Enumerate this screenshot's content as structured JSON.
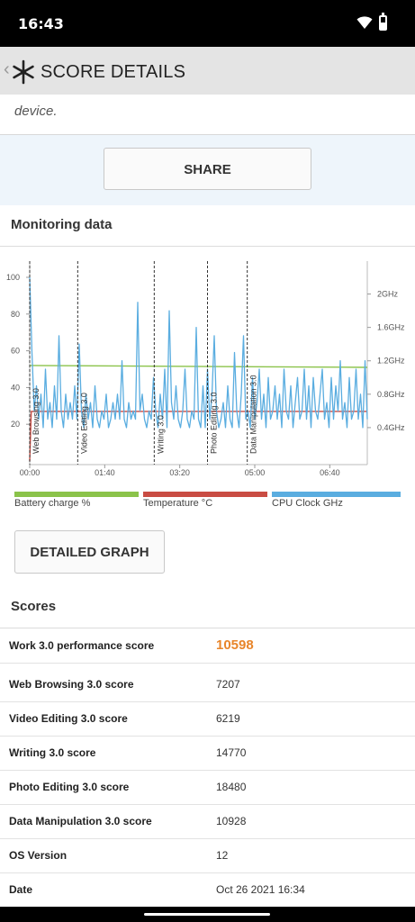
{
  "status": {
    "time": "16:43"
  },
  "appbar": {
    "title": "SCORE DETAILS"
  },
  "top_card": {
    "description_fragment": "device."
  },
  "share": {
    "label": "SHARE"
  },
  "monitoring": {
    "title": "Monitoring data",
    "left_ticks": [
      "100",
      "80",
      "60",
      "40",
      "20"
    ],
    "right_ticks": [
      "2GHz",
      "1.6GHz",
      "1.2GHz",
      "0.8GHz",
      "0.4GHz"
    ],
    "x_ticks": [
      "00:00",
      "01:40",
      "03:20",
      "05:00",
      "06:40"
    ],
    "test_markers": [
      "Web Browsing 3.0",
      "Video Editing 3.0",
      "Writing 3.0",
      "Photo Editing 3.0",
      "Data Manipulation 3.0"
    ],
    "legend": [
      {
        "label": "Battery charge %",
        "color": "#8bc34a"
      },
      {
        "label": "Temperature °C",
        "color": "#c94c43"
      },
      {
        "label": "CPU Clock GHz",
        "color": "#5aade0"
      }
    ]
  },
  "chart_data": {
    "type": "line",
    "x_label": "",
    "x_ticks": [
      "00:00",
      "01:40",
      "03:20",
      "05:00",
      "06:40"
    ],
    "x_range_seconds": [
      0,
      450
    ],
    "y_left_range": [
      0,
      100
    ],
    "y_right_range_ghz": [
      0,
      2.2
    ],
    "annotations": [
      {
        "label": "Web Browsing 3.0",
        "x_seconds": 0
      },
      {
        "label": "Video Editing 3.0",
        "x_seconds": 64
      },
      {
        "label": "Writing 3.0",
        "x_seconds": 166
      },
      {
        "label": "Photo Editing 3.0",
        "x_seconds": 237
      },
      {
        "label": "Data Manipulation 3.0",
        "x_seconds": 290
      }
    ],
    "series": [
      {
        "name": "Battery charge %",
        "axis": "left",
        "x": [
          0,
          450
        ],
        "values": [
          52,
          51
        ]
      },
      {
        "name": "Temperature °C",
        "axis": "left",
        "x": [
          0,
          2,
          450
        ],
        "values": [
          0,
          27,
          27
        ]
      },
      {
        "name": "CPU Clock GHz",
        "axis": "right",
        "x": [
          0,
          3,
          6,
          9,
          12,
          15,
          18,
          21,
          24,
          27,
          30,
          33,
          36,
          39,
          42,
          45,
          48,
          51,
          54,
          57,
          60,
          63,
          66,
          69,
          72,
          75,
          78,
          81,
          84,
          87,
          90,
          93,
          96,
          99,
          102,
          105,
          108,
          111,
          114,
          117,
          120,
          123,
          126,
          129,
          132,
          135,
          138,
          141,
          144,
          147,
          150,
          153,
          156,
          159,
          162,
          165,
          168,
          171,
          174,
          177,
          180,
          183,
          186,
          189,
          192,
          195,
          198,
          201,
          204,
          207,
          210,
          213,
          216,
          219,
          222,
          225,
          228,
          231,
          234,
          237,
          240,
          243,
          246,
          249,
          252,
          255,
          258,
          261,
          264,
          267,
          270,
          273,
          276,
          279,
          282,
          285,
          288,
          291,
          294,
          297,
          300,
          303,
          306,
          309,
          312,
          315,
          318,
          321,
          324,
          327,
          330,
          333,
          336,
          339,
          342,
          345,
          348,
          351,
          354,
          357,
          360,
          363,
          366,
          369,
          372,
          375,
          378,
          381,
          384,
          387,
          390,
          393,
          396,
          399,
          402,
          405,
          408,
          411,
          414,
          417,
          420,
          423,
          426,
          429,
          432,
          435,
          438,
          441,
          444,
          447,
          450
        ],
        "values": [
          2.2,
          1.3,
          0.6,
          0.9,
          0.5,
          0.8,
          0.4,
          1.1,
          0.5,
          0.7,
          0.4,
          0.9,
          0.5,
          1.5,
          0.6,
          0.4,
          0.8,
          0.5,
          0.7,
          0.5,
          0.9,
          0.5,
          1.4,
          0.6,
          0.4,
          0.8,
          0.5,
          0.7,
          0.4,
          0.9,
          0.5,
          0.4,
          0.6,
          0.5,
          0.8,
          0.4,
          0.5,
          0.7,
          0.5,
          0.8,
          0.5,
          1.2,
          0.5,
          0.4,
          0.7,
          0.5,
          0.6,
          0.5,
          1.9,
          0.6,
          0.8,
          0.5,
          0.4,
          0.6,
          0.5,
          1.0,
          0.6,
          0.4,
          0.8,
          0.5,
          1.1,
          0.4,
          1.8,
          0.7,
          0.5,
          0.9,
          0.5,
          0.4,
          0.6,
          1.1,
          0.5,
          0.4,
          0.6,
          0.5,
          1.6,
          0.5,
          0.4,
          0.9,
          0.4,
          1.1,
          0.5,
          0.8,
          1.5,
          0.6,
          0.4,
          0.5,
          0.7,
          0.4,
          0.9,
          0.5,
          0.4,
          1.3,
          0.6,
          0.4,
          0.8,
          1.5,
          0.5,
          0.6,
          0.4,
          1.0,
          0.5,
          0.7,
          1.1,
          0.5,
          0.8,
          0.4,
          1.0,
          0.5,
          0.6,
          0.9,
          0.5,
          0.8,
          0.4,
          1.1,
          0.6,
          0.5,
          0.9,
          0.4,
          0.7,
          1.0,
          0.5,
          0.6,
          1.1,
          0.5,
          0.9,
          0.4,
          1.0,
          0.6,
          0.5,
          0.8,
          1.1,
          0.5,
          0.7,
          0.4,
          1.0,
          0.5,
          0.9,
          0.6,
          1.2,
          0.5,
          0.7,
          0.4,
          1.0,
          0.5,
          0.6,
          1.1,
          0.5,
          0.8,
          0.4,
          1.2,
          0.5
        ]
      }
    ]
  },
  "detail_button": {
    "label": "DETAILED GRAPH"
  },
  "scores": {
    "title": "Scores",
    "rows": [
      {
        "label": "Work 3.0 performance score",
        "value": "10598"
      },
      {
        "label": "Web Browsing 3.0 score",
        "value": "7207"
      },
      {
        "label": "Video Editing 3.0 score",
        "value": "6219"
      },
      {
        "label": "Writing 3.0 score",
        "value": "14770"
      },
      {
        "label": "Photo Editing 3.0 score",
        "value": "18480"
      },
      {
        "label": "Data Manipulation 3.0 score",
        "value": "10928"
      },
      {
        "label": "OS Version",
        "value": "12"
      },
      {
        "label": "Date",
        "value": "Oct 26 2021 16:34"
      }
    ]
  }
}
